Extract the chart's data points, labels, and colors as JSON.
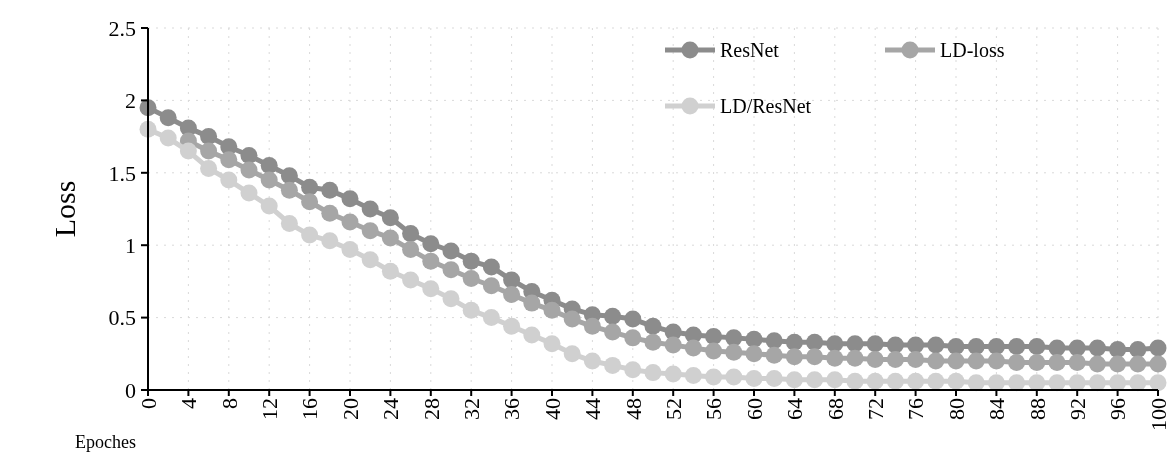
{
  "chart_data": {
    "type": "line",
    "xlabel": "Epoches",
    "ylabel": "Loss",
    "x": [
      0,
      2,
      4,
      6,
      8,
      10,
      12,
      14,
      16,
      18,
      20,
      22,
      24,
      26,
      28,
      30,
      32,
      34,
      36,
      38,
      40,
      42,
      44,
      46,
      48,
      50,
      52,
      54,
      56,
      58,
      60,
      62,
      64,
      66,
      68,
      70,
      72,
      74,
      76,
      78,
      80,
      82,
      84,
      86,
      88,
      90,
      92,
      94,
      96,
      98,
      100
    ],
    "xlim": [
      0,
      100
    ],
    "xticks": [
      0,
      4,
      8,
      12,
      16,
      20,
      24,
      28,
      32,
      36,
      40,
      44,
      48,
      52,
      56,
      60,
      64,
      68,
      72,
      76,
      80,
      84,
      88,
      92,
      96,
      100
    ],
    "ylim": [
      0,
      2.5
    ],
    "yticks": [
      0,
      0.5,
      1,
      1.5,
      2,
      2.5
    ],
    "grid": true,
    "legend": "top right",
    "marker": "circle",
    "line_style": "solid",
    "series": [
      {
        "name": "ResNet",
        "color": "#8c8c8c",
        "values": [
          1.95,
          1.88,
          1.81,
          1.75,
          1.68,
          1.62,
          1.55,
          1.48,
          1.4,
          1.38,
          1.32,
          1.25,
          1.19,
          1.08,
          1.01,
          0.96,
          0.89,
          0.85,
          0.76,
          0.68,
          0.62,
          0.56,
          0.52,
          0.51,
          0.49,
          0.44,
          0.4,
          0.38,
          0.37,
          0.36,
          0.35,
          0.34,
          0.33,
          0.33,
          0.32,
          0.32,
          0.32,
          0.31,
          0.31,
          0.31,
          0.3,
          0.3,
          0.3,
          0.3,
          0.3,
          0.29,
          0.29,
          0.29,
          0.28,
          0.28,
          0.29
        ]
      },
      {
        "name": "LD-loss",
        "color": "#a6a6a6",
        "values": [
          null,
          null,
          1.72,
          1.65,
          1.59,
          1.52,
          1.45,
          1.38,
          1.3,
          1.22,
          1.16,
          1.1,
          1.05,
          0.97,
          0.89,
          0.83,
          0.77,
          0.72,
          0.66,
          0.6,
          0.55,
          0.49,
          0.44,
          0.4,
          0.36,
          0.33,
          0.31,
          0.29,
          0.27,
          0.26,
          0.25,
          0.24,
          0.23,
          0.23,
          0.22,
          0.22,
          0.21,
          0.21,
          0.21,
          0.2,
          0.2,
          0.2,
          0.2,
          0.19,
          0.19,
          0.19,
          0.19,
          0.18,
          0.18,
          0.18,
          0.18
        ]
      },
      {
        "name": "LD/ResNet",
        "color": "#d0d0d0",
        "values": [
          1.8,
          1.74,
          1.65,
          1.53,
          1.45,
          1.36,
          1.27,
          1.15,
          1.07,
          1.03,
          0.97,
          0.9,
          0.82,
          0.76,
          0.7,
          0.63,
          0.55,
          0.5,
          0.44,
          0.38,
          0.32,
          0.25,
          0.2,
          0.17,
          0.14,
          0.12,
          0.11,
          0.1,
          0.09,
          0.09,
          0.08,
          0.08,
          0.07,
          0.07,
          0.07,
          0.06,
          0.06,
          0.06,
          0.06,
          0.06,
          0.06,
          0.05,
          0.05,
          0.05,
          0.05,
          0.05,
          0.05,
          0.05,
          0.05,
          0.05,
          0.05
        ]
      }
    ]
  }
}
